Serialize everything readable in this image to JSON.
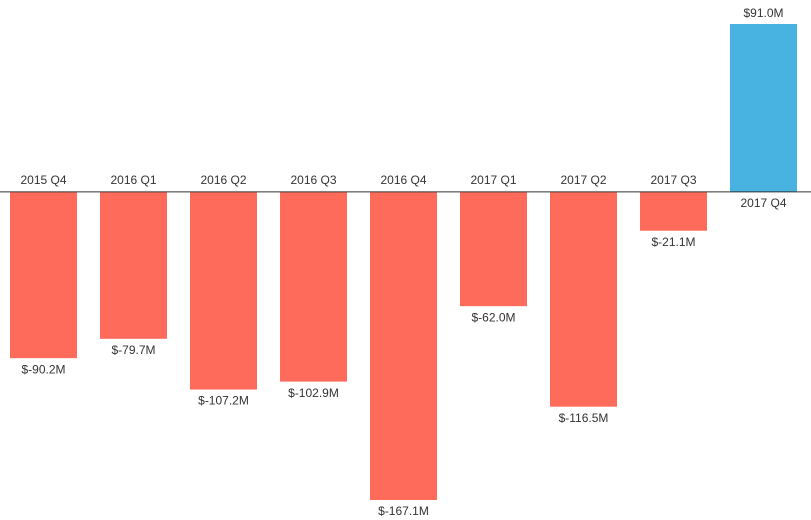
{
  "chart_data": {
    "type": "bar",
    "categories": [
      "2015 Q4",
      "2016 Q1",
      "2016 Q2",
      "2016 Q3",
      "2016 Q4",
      "2017 Q1",
      "2017 Q2",
      "2017 Q3",
      "2017 Q4"
    ],
    "values": [
      -90.2,
      -79.7,
      -107.2,
      -102.9,
      -167.1,
      -62.0,
      -116.5,
      -21.1,
      91.0
    ],
    "value_labels": [
      "$-90.2M",
      "$-79.7M",
      "$-107.2M",
      "$-102.9M",
      "$-167.1M",
      "$-62.0M",
      "$-116.5M",
      "$-21.1M",
      "$91.0M"
    ],
    "colors": [
      "#ff6b5b",
      "#ff6b5b",
      "#ff6b5b",
      "#ff6b5b",
      "#ff6b5b",
      "#ff6b5b",
      "#ff6b5b",
      "#ff6b5b",
      "#48b3e0"
    ]
  }
}
